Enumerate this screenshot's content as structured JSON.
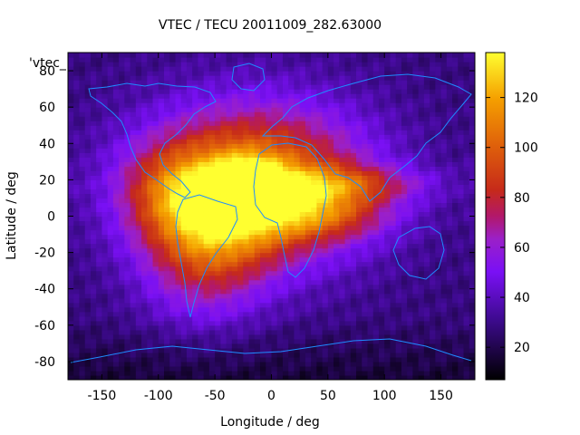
{
  "chart_data": {
    "type": "heatmap",
    "title": "VTEC / TECU 20011009_282.63000",
    "legend_entry": "'vtec_",
    "xlabel": "Longitude / deg",
    "ylabel": "Latitude / deg",
    "xlim": [
      -180,
      180
    ],
    "ylim": [
      -90,
      90
    ],
    "x_ticks": [
      -150,
      -100,
      -50,
      0,
      50,
      100,
      150
    ],
    "y_ticks": [
      -80,
      -60,
      -40,
      -20,
      0,
      20,
      40,
      60,
      80
    ],
    "colorbar": {
      "range": [
        7,
        138
      ],
      "ticks": [
        20,
        40,
        60,
        80,
        100,
        120
      ],
      "stops": [
        {
          "v": 0.0,
          "c": "#000000"
        },
        {
          "v": 0.18,
          "c": "#3c0a8c"
        },
        {
          "v": 0.33,
          "c": "#7a10f5"
        },
        {
          "v": 0.43,
          "c": "#9b20c8"
        },
        {
          "v": 0.5,
          "c": "#b2186a"
        },
        {
          "v": 0.58,
          "c": "#c62a1a"
        },
        {
          "v": 0.72,
          "c": "#e0620a"
        },
        {
          "v": 0.86,
          "c": "#f5a000"
        },
        {
          "v": 1.0,
          "c": "#ffff30"
        }
      ]
    },
    "field_sources": [
      {
        "lon": -15,
        "lat": 18,
        "slon": 70,
        "slat": 30,
        "amp": 88
      },
      {
        "lon": -20,
        "lat": 20,
        "slon": 18,
        "slat": 8,
        "amp": 45
      },
      {
        "lon": -45,
        "lat": 5,
        "slon": 40,
        "slat": 18,
        "amp": 40
      },
      {
        "lon": -60,
        "lat": -25,
        "slon": 38,
        "slat": 24,
        "amp": 38
      },
      {
        "lon": 40,
        "lat": 2,
        "slon": 45,
        "slat": 10,
        "amp": 38
      },
      {
        "lon": 60,
        "lat": 18,
        "slon": 55,
        "slat": 7,
        "amp": 35
      },
      {
        "lon": -90,
        "lat": 15,
        "slon": 30,
        "slat": 18,
        "amp": 25
      }
    ],
    "field_background": 28
  }
}
